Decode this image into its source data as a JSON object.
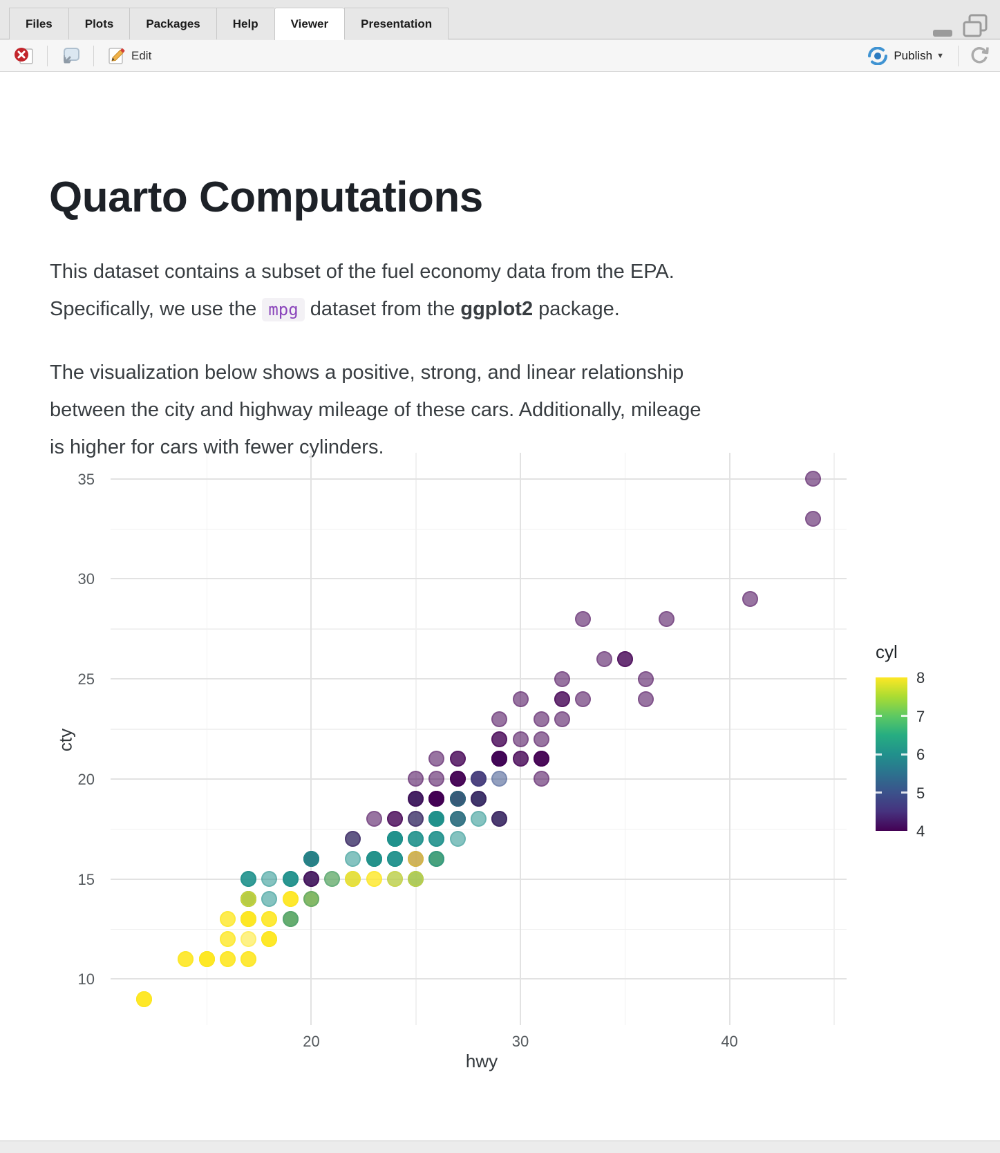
{
  "window": {
    "tabs": [
      {
        "label": "Files",
        "selected": false
      },
      {
        "label": "Plots",
        "selected": false
      },
      {
        "label": "Packages",
        "selected": false
      },
      {
        "label": "Help",
        "selected": false
      },
      {
        "label": "Viewer",
        "selected": true
      },
      {
        "label": "Presentation",
        "selected": false
      }
    ],
    "toolbar": {
      "edit_label": "Edit",
      "publish_label": "Publish"
    }
  },
  "document": {
    "title": "Quarto Computations",
    "p1_line1": "This dataset contains a subset of the fuel economy data from the EPA.",
    "p1_line2_pre": "Specifically, we use the ",
    "p1_code": "mpg",
    "p1_line2_mid": " dataset from the ",
    "p1_bold": "ggplot2",
    "p1_line2_post": " package.",
    "p2_line1": "The visualization below shows a positive, strong, and linear relationship",
    "p2_line2": "between the city and highway mileage of these cars. Additionally, mileage",
    "p2_line3": "is higher for cars with fewer cylinders."
  },
  "chart_data": {
    "type": "scatter",
    "xlabel": "hwy",
    "ylabel": "cty",
    "xlim": [
      10.4,
      45.6
    ],
    "ylim": [
      7.7,
      36.3
    ],
    "x_major_ticks": [
      20,
      30,
      40
    ],
    "x_minor_ticks": [
      15,
      25,
      35,
      45
    ],
    "y_major_ticks": [
      10,
      15,
      20,
      25,
      30,
      35
    ],
    "y_minor_ticks": [
      12.5,
      17.5,
      22.5,
      27.5,
      32.5
    ],
    "grid": true,
    "point_alpha": 0.55,
    "legend": {
      "title": "cyl",
      "position": "right",
      "tick_labels": [
        8,
        7,
        6,
        5,
        4
      ],
      "range": [
        4,
        8
      ],
      "viridis_gradient": [
        "#440154",
        "#46327E",
        "#3B528B",
        "#2C728E",
        "#21918C",
        "#27AD81",
        "#5EC962",
        "#AADC32",
        "#FDE725"
      ]
    },
    "cyl_colors": {
      "4": "#440154",
      "5": "#3B528B",
      "6": "#21918C",
      "7": "#5EC962",
      "8": "#FDE725"
    },
    "points_format": [
      "hwy",
      "cty",
      "cyl"
    ],
    "points": [
      [
        29,
        18,
        4
      ],
      [
        29,
        21,
        4
      ],
      [
        31,
        20,
        4
      ],
      [
        30,
        21,
        4
      ],
      [
        26,
        16,
        6
      ],
      [
        26,
        18,
        6
      ],
      [
        27,
        18,
        6
      ],
      [
        26,
        18,
        4
      ],
      [
        25,
        16,
        4
      ],
      [
        28,
        20,
        4
      ],
      [
        27,
        19,
        4
      ],
      [
        25,
        15,
        6
      ],
      [
        25,
        17,
        6
      ],
      [
        25,
        17,
        6
      ],
      [
        25,
        15,
        6
      ],
      [
        24,
        15,
        6
      ],
      [
        25,
        17,
        6
      ],
      [
        23,
        16,
        8
      ],
      [
        20,
        14,
        8
      ],
      [
        15,
        11,
        8
      ],
      [
        20,
        14,
        8
      ],
      [
        17,
        13,
        8
      ],
      [
        17,
        12,
        8
      ],
      [
        26,
        16,
        8
      ],
      [
        23,
        15,
        8
      ],
      [
        26,
        16,
        8
      ],
      [
        25,
        15,
        8
      ],
      [
        24,
        15,
        8
      ],
      [
        19,
        14,
        8
      ],
      [
        14,
        11,
        8
      ],
      [
        15,
        11,
        8
      ],
      [
        17,
        14,
        8
      ],
      [
        27,
        19,
        4
      ],
      [
        30,
        22,
        4
      ],
      [
        26,
        18,
        6
      ],
      [
        29,
        18,
        6
      ],
      [
        26,
        17,
        6
      ],
      [
        24,
        18,
        4
      ],
      [
        24,
        17,
        6
      ],
      [
        22,
        16,
        6
      ],
      [
        24,
        17,
        6
      ],
      [
        24,
        17,
        6
      ],
      [
        22,
        15,
        6
      ],
      [
        23,
        16,
        6
      ],
      [
        23,
        16,
        6
      ],
      [
        23,
        16,
        6
      ],
      [
        19,
        15,
        6
      ],
      [
        18,
        14,
        6
      ],
      [
        17,
        13,
        6
      ],
      [
        17,
        14,
        6
      ],
      [
        19,
        14,
        8
      ],
      [
        19,
        14,
        8
      ],
      [
        12,
        9,
        8
      ],
      [
        17,
        13,
        6
      ],
      [
        17,
        13,
        8
      ],
      [
        12,
        9,
        8
      ],
      [
        17,
        13,
        8
      ],
      [
        16,
        11,
        8
      ],
      [
        18,
        13,
        8
      ],
      [
        17,
        13,
        8
      ],
      [
        12,
        9,
        8
      ],
      [
        16,
        12,
        8
      ],
      [
        12,
        9,
        8
      ],
      [
        15,
        11,
        8
      ],
      [
        16,
        11,
        8
      ],
      [
        17,
        13,
        8
      ],
      [
        15,
        11,
        8
      ],
      [
        17,
        11,
        8
      ],
      [
        17,
        11,
        8
      ],
      [
        18,
        12,
        8
      ],
      [
        17,
        14,
        6
      ],
      [
        17,
        15,
        6
      ],
      [
        17,
        14,
        6
      ],
      [
        19,
        13,
        6
      ],
      [
        19,
        13,
        8
      ],
      [
        17,
        14,
        6
      ],
      [
        17,
        14,
        6
      ],
      [
        16,
        13,
        8
      ],
      [
        16,
        13,
        8
      ],
      [
        17,
        13,
        8
      ],
      [
        15,
        11,
        8
      ],
      [
        17,
        13,
        8
      ],
      [
        26,
        18,
        6
      ],
      [
        25,
        18,
        6
      ],
      [
        26,
        17,
        6
      ],
      [
        24,
        16,
        6
      ],
      [
        21,
        15,
        8
      ],
      [
        22,
        15,
        8
      ],
      [
        23,
        15,
        8
      ],
      [
        22,
        15,
        8
      ],
      [
        20,
        14,
        8
      ],
      [
        33,
        28,
        4
      ],
      [
        32,
        24,
        4
      ],
      [
        32,
        25,
        4
      ],
      [
        29,
        23,
        4
      ],
      [
        32,
        24,
        4
      ],
      [
        34,
        26,
        4
      ],
      [
        36,
        25,
        4
      ],
      [
        36,
        24,
        4
      ],
      [
        29,
        21,
        4
      ],
      [
        26,
        18,
        4
      ],
      [
        27,
        18,
        4
      ],
      [
        30,
        21,
        4
      ],
      [
        31,
        21,
        4
      ],
      [
        26,
        18,
        6
      ],
      [
        26,
        18,
        6
      ],
      [
        28,
        19,
        6
      ],
      [
        26,
        19,
        4
      ],
      [
        28,
        19,
        4
      ],
      [
        28,
        20,
        4
      ],
      [
        27,
        20,
        4
      ],
      [
        24,
        17,
        6
      ],
      [
        24,
        16,
        6
      ],
      [
        24,
        17,
        6
      ],
      [
        22,
        17,
        6
      ],
      [
        19,
        15,
        6
      ],
      [
        20,
        15,
        6
      ],
      [
        17,
        14,
        8
      ],
      [
        12,
        9,
        8
      ],
      [
        19,
        14,
        8
      ],
      [
        18,
        13,
        8
      ],
      [
        14,
        11,
        8
      ],
      [
        15,
        11,
        8
      ],
      [
        18,
        12,
        8
      ],
      [
        18,
        12,
        8
      ],
      [
        15,
        11,
        8
      ],
      [
        17,
        11,
        8
      ],
      [
        16,
        11,
        8
      ],
      [
        18,
        12,
        8
      ],
      [
        17,
        14,
        6
      ],
      [
        19,
        13,
        6
      ],
      [
        19,
        13,
        8
      ],
      [
        17,
        14,
        8
      ],
      [
        29,
        21,
        4
      ],
      [
        27,
        19,
        4
      ],
      [
        31,
        23,
        4
      ],
      [
        32,
        23,
        4
      ],
      [
        27,
        19,
        6
      ],
      [
        26,
        19,
        6
      ],
      [
        26,
        18,
        6
      ],
      [
        25,
        19,
        6
      ],
      [
        25,
        19,
        6
      ],
      [
        17,
        14,
        6
      ],
      [
        20,
        14,
        6
      ],
      [
        18,
        12,
        8
      ],
      [
        26,
        18,
        6
      ],
      [
        26,
        16,
        6
      ],
      [
        27,
        17,
        6
      ],
      [
        28,
        18,
        6
      ],
      [
        25,
        16,
        8
      ],
      [
        25,
        18,
        4
      ],
      [
        24,
        18,
        4
      ],
      [
        27,
        20,
        4
      ],
      [
        25,
        19,
        4
      ],
      [
        23,
        18,
        4
      ],
      [
        26,
        21,
        4
      ],
      [
        26,
        19,
        4
      ],
      [
        26,
        19,
        4
      ],
      [
        26,
        19,
        4
      ],
      [
        25,
        20,
        4
      ],
      [
        27,
        20,
        4
      ],
      [
        25,
        19,
        4
      ],
      [
        27,
        20,
        4
      ],
      [
        20,
        15,
        4
      ],
      [
        20,
        16,
        4
      ],
      [
        19,
        15,
        6
      ],
      [
        20,
        16,
        6
      ],
      [
        17,
        14,
        8
      ],
      [
        29,
        21,
        4
      ],
      [
        27,
        21,
        4
      ],
      [
        31,
        21,
        4
      ],
      [
        31,
        21,
        4
      ],
      [
        26,
        18,
        6
      ],
      [
        26,
        18,
        6
      ],
      [
        28,
        19,
        6
      ],
      [
        27,
        21,
        4
      ],
      [
        29,
        21,
        4
      ],
      [
        31,
        21,
        4
      ],
      [
        31,
        22,
        4
      ],
      [
        26,
        18,
        6
      ],
      [
        27,
        18,
        6
      ],
      [
        30,
        24,
        4
      ],
      [
        33,
        24,
        4
      ],
      [
        35,
        26,
        4
      ],
      [
        37,
        28,
        4
      ],
      [
        35,
        26,
        4
      ],
      [
        15,
        11,
        8
      ],
      [
        18,
        13,
        8
      ],
      [
        24,
        16,
        6
      ],
      [
        24,
        16,
        6
      ],
      [
        20,
        15,
        4
      ],
      [
        20,
        16,
        4
      ],
      [
        22,
        17,
        4
      ],
      [
        17,
        15,
        6
      ],
      [
        19,
        15,
        6
      ],
      [
        18,
        15,
        6
      ],
      [
        20,
        16,
        6
      ],
      [
        17,
        15,
        6
      ],
      [
        17,
        13,
        8
      ],
      [
        24,
        17,
        6
      ],
      [
        23,
        16,
        6
      ],
      [
        14,
        11,
        8
      ],
      [
        29,
        21,
        4
      ],
      [
        26,
        19,
        4
      ],
      [
        29,
        21,
        4
      ],
      [
        29,
        22,
        4
      ],
      [
        24,
        17,
        6
      ],
      [
        44,
        33,
        4
      ],
      [
        29,
        21,
        4
      ],
      [
        26,
        19,
        4
      ],
      [
        29,
        22,
        4
      ],
      [
        29,
        21,
        4
      ],
      [
        29,
        21,
        5
      ],
      [
        29,
        21,
        5
      ],
      [
        23,
        16,
        6
      ],
      [
        24,
        17,
        6
      ],
      [
        44,
        35,
        4
      ],
      [
        41,
        29,
        4
      ],
      [
        29,
        21,
        4
      ],
      [
        26,
        19,
        4
      ],
      [
        28,
        20,
        5
      ],
      [
        29,
        20,
        5
      ],
      [
        29,
        21,
        4
      ],
      [
        29,
        18,
        4
      ],
      [
        28,
        19,
        4
      ],
      [
        29,
        21,
        4
      ],
      [
        26,
        16,
        6
      ],
      [
        26,
        18,
        6
      ],
      [
        26,
        17,
        6
      ],
      [
        19,
        13,
        6
      ],
      [
        20,
        16,
        6
      ],
      [
        21,
        15,
        6
      ],
      [
        16,
        12,
        8
      ],
      [
        26,
        20,
        4
      ]
    ]
  }
}
